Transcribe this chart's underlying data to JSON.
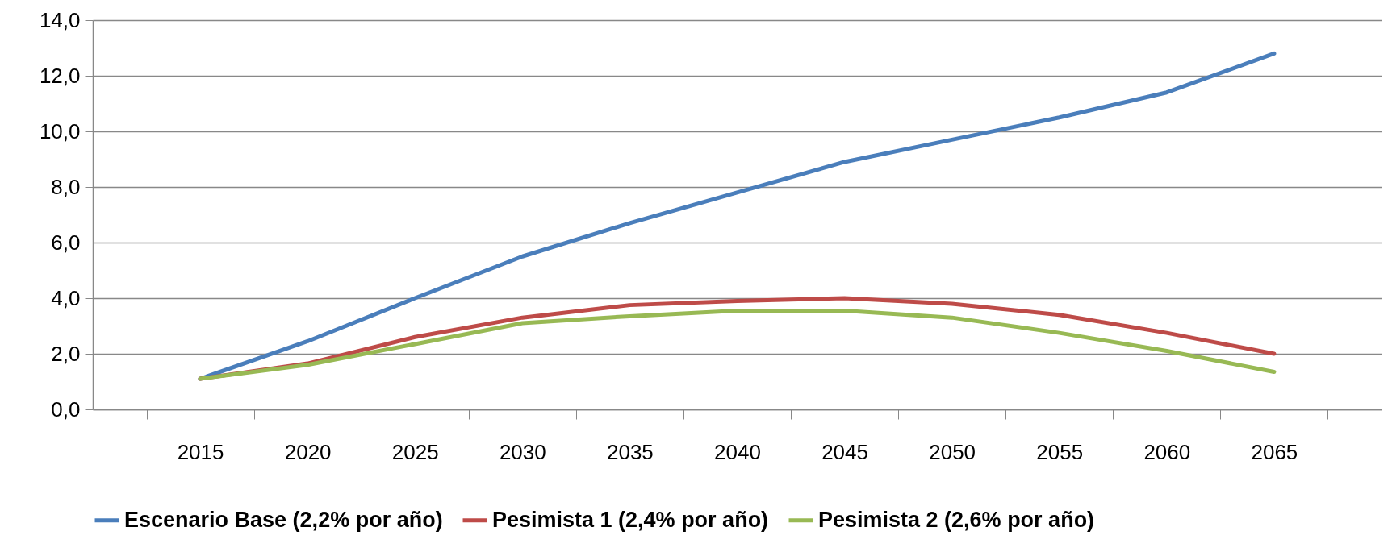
{
  "chart_data": {
    "type": "line",
    "categories": [
      "2015",
      "2020",
      "2025",
      "2030",
      "2035",
      "2040",
      "2045",
      "2050",
      "2055",
      "2060",
      "2065"
    ],
    "series": [
      {
        "name": "Escenario Base (2,2% por año)",
        "color": "#4a7ebb",
        "values": [
          1.1,
          2.45,
          4.0,
          5.5,
          6.7,
          7.8,
          8.9,
          9.7,
          10.5,
          11.4,
          12.8
        ]
      },
      {
        "name": "Pesimista 1 (2,4% por año)",
        "color": "#be4b48",
        "values": [
          1.1,
          1.65,
          2.6,
          3.3,
          3.75,
          3.9,
          4.0,
          3.8,
          3.4,
          2.75,
          2.0
        ]
      },
      {
        "name": "Pesimista 2 (2,6% por año)",
        "color": "#98b954",
        "values": [
          1.1,
          1.6,
          2.35,
          3.1,
          3.35,
          3.55,
          3.55,
          3.3,
          2.75,
          2.1,
          1.35
        ]
      }
    ],
    "ylim": [
      0,
      14
    ],
    "yticks": [
      {
        "value": 0,
        "label": "0,0"
      },
      {
        "value": 2,
        "label": "2,0"
      },
      {
        "value": 4,
        "label": "4,0"
      },
      {
        "value": 6,
        "label": "6,0"
      },
      {
        "value": 8,
        "label": "8,0"
      },
      {
        "value": 10,
        "label": "10,0"
      },
      {
        "value": 12,
        "label": "12,0"
      },
      {
        "value": 14,
        "label": "14,0"
      }
    ],
    "grid": "y",
    "legend": "bottom",
    "marker": "none",
    "line_style": "solid"
  }
}
